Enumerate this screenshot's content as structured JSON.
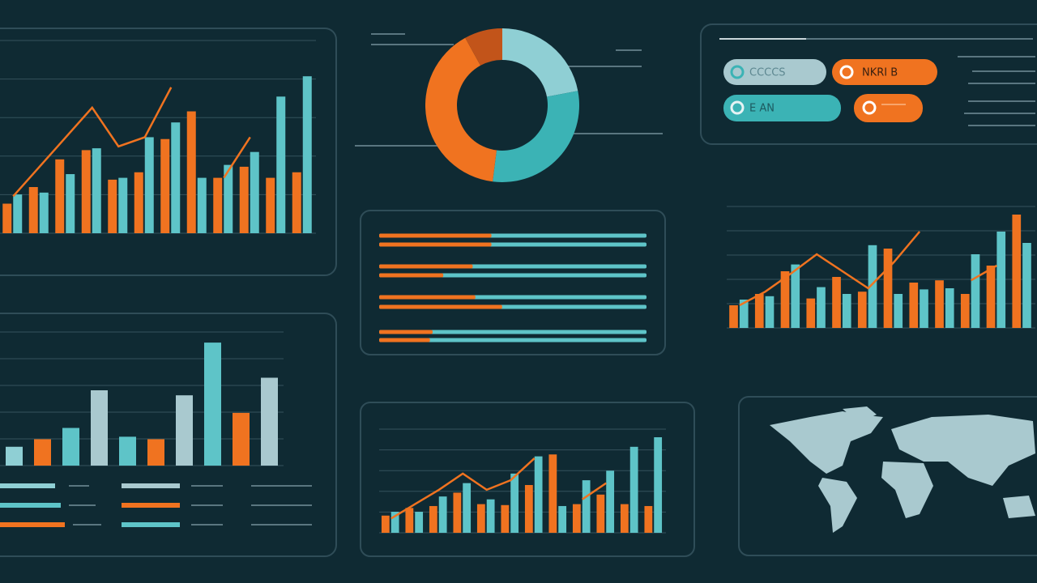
{
  "chart_data": [
    {
      "type": "bar",
      "ylim": [
        0,
        100
      ],
      "series": [
        {
          "color": "#f07320",
          "values": [
            16,
            25,
            40,
            45,
            29,
            33,
            51,
            66,
            30,
            36,
            30,
            33
          ]
        },
        {
          "color": "#5ec4c8",
          "values": [
            21,
            22,
            32,
            46,
            30,
            52,
            60,
            30,
            37,
            44,
            74,
            85
          ]
        },
        {
          "type": "line",
          "color": "#f07320",
          "values": [
            20,
            36,
            52,
            68,
            47,
            52,
            79,
            null,
            30,
            52,
            null,
            null
          ]
        }
      ]
    },
    {
      "type": "pie",
      "values": [
        22,
        30,
        40,
        8
      ],
      "colors": [
        "#8fcfd4",
        "#3bb3b5",
        "#f07320",
        "#c2541a"
      ]
    },
    {
      "type": "progress",
      "xlim": [
        0,
        100
      ],
      "color": "#f07320",
      "track": "#5ec4c8",
      "values": [
        42,
        42,
        35,
        24,
        36,
        46,
        20,
        19
      ]
    },
    {
      "type": "bar",
      "ylim": [
        0,
        100
      ],
      "series": [
        {
          "color": "#f07320",
          "values": [
            20,
            30,
            50,
            26,
            45,
            32,
            70,
            40,
            42,
            30,
            55,
            100
          ]
        },
        {
          "color": "#5ec4c8",
          "values": [
            25,
            28,
            56,
            36,
            30,
            73,
            30,
            34,
            35,
            65,
            85,
            75
          ]
        },
        {
          "type": "line",
          "color": "#f07320",
          "values": [
            20,
            32,
            48,
            65,
            50,
            35,
            58,
            85,
            null,
            42,
            55,
            null
          ]
        }
      ]
    },
    {
      "type": "bar",
      "ylim": [
        0,
        100
      ],
      "values": [
        15,
        21,
        30,
        60,
        23,
        21,
        56,
        98,
        42,
        70
      ],
      "colors": [
        "#8fcfd4",
        "#f07320",
        "#5ec4c8",
        "#a9c9cf",
        "#5ec4c8",
        "#f07320",
        "#a9c9cf",
        "#5ec4c8",
        "#f07320",
        "#a9c9cf"
      ]
    },
    {
      "type": "bar",
      "ylim": [
        0,
        100
      ],
      "series": [
        {
          "color": "#f07320",
          "values": [
            18,
            26,
            28,
            42,
            30,
            29,
            50,
            82,
            30,
            40,
            30,
            28
          ]
        },
        {
          "color": "#5ec4c8",
          "values": [
            22,
            22,
            38,
            52,
            35,
            62,
            80,
            28,
            55,
            65,
            90,
            100
          ]
        },
        {
          "type": "line",
          "color": "#f07320",
          "values": [
            15,
            30,
            45,
            62,
            45,
            55,
            78,
            null,
            35,
            52,
            null,
            null
          ]
        }
      ]
    }
  ],
  "pills": [
    "CCCCS",
    "NKRI B",
    "E AN"
  ]
}
